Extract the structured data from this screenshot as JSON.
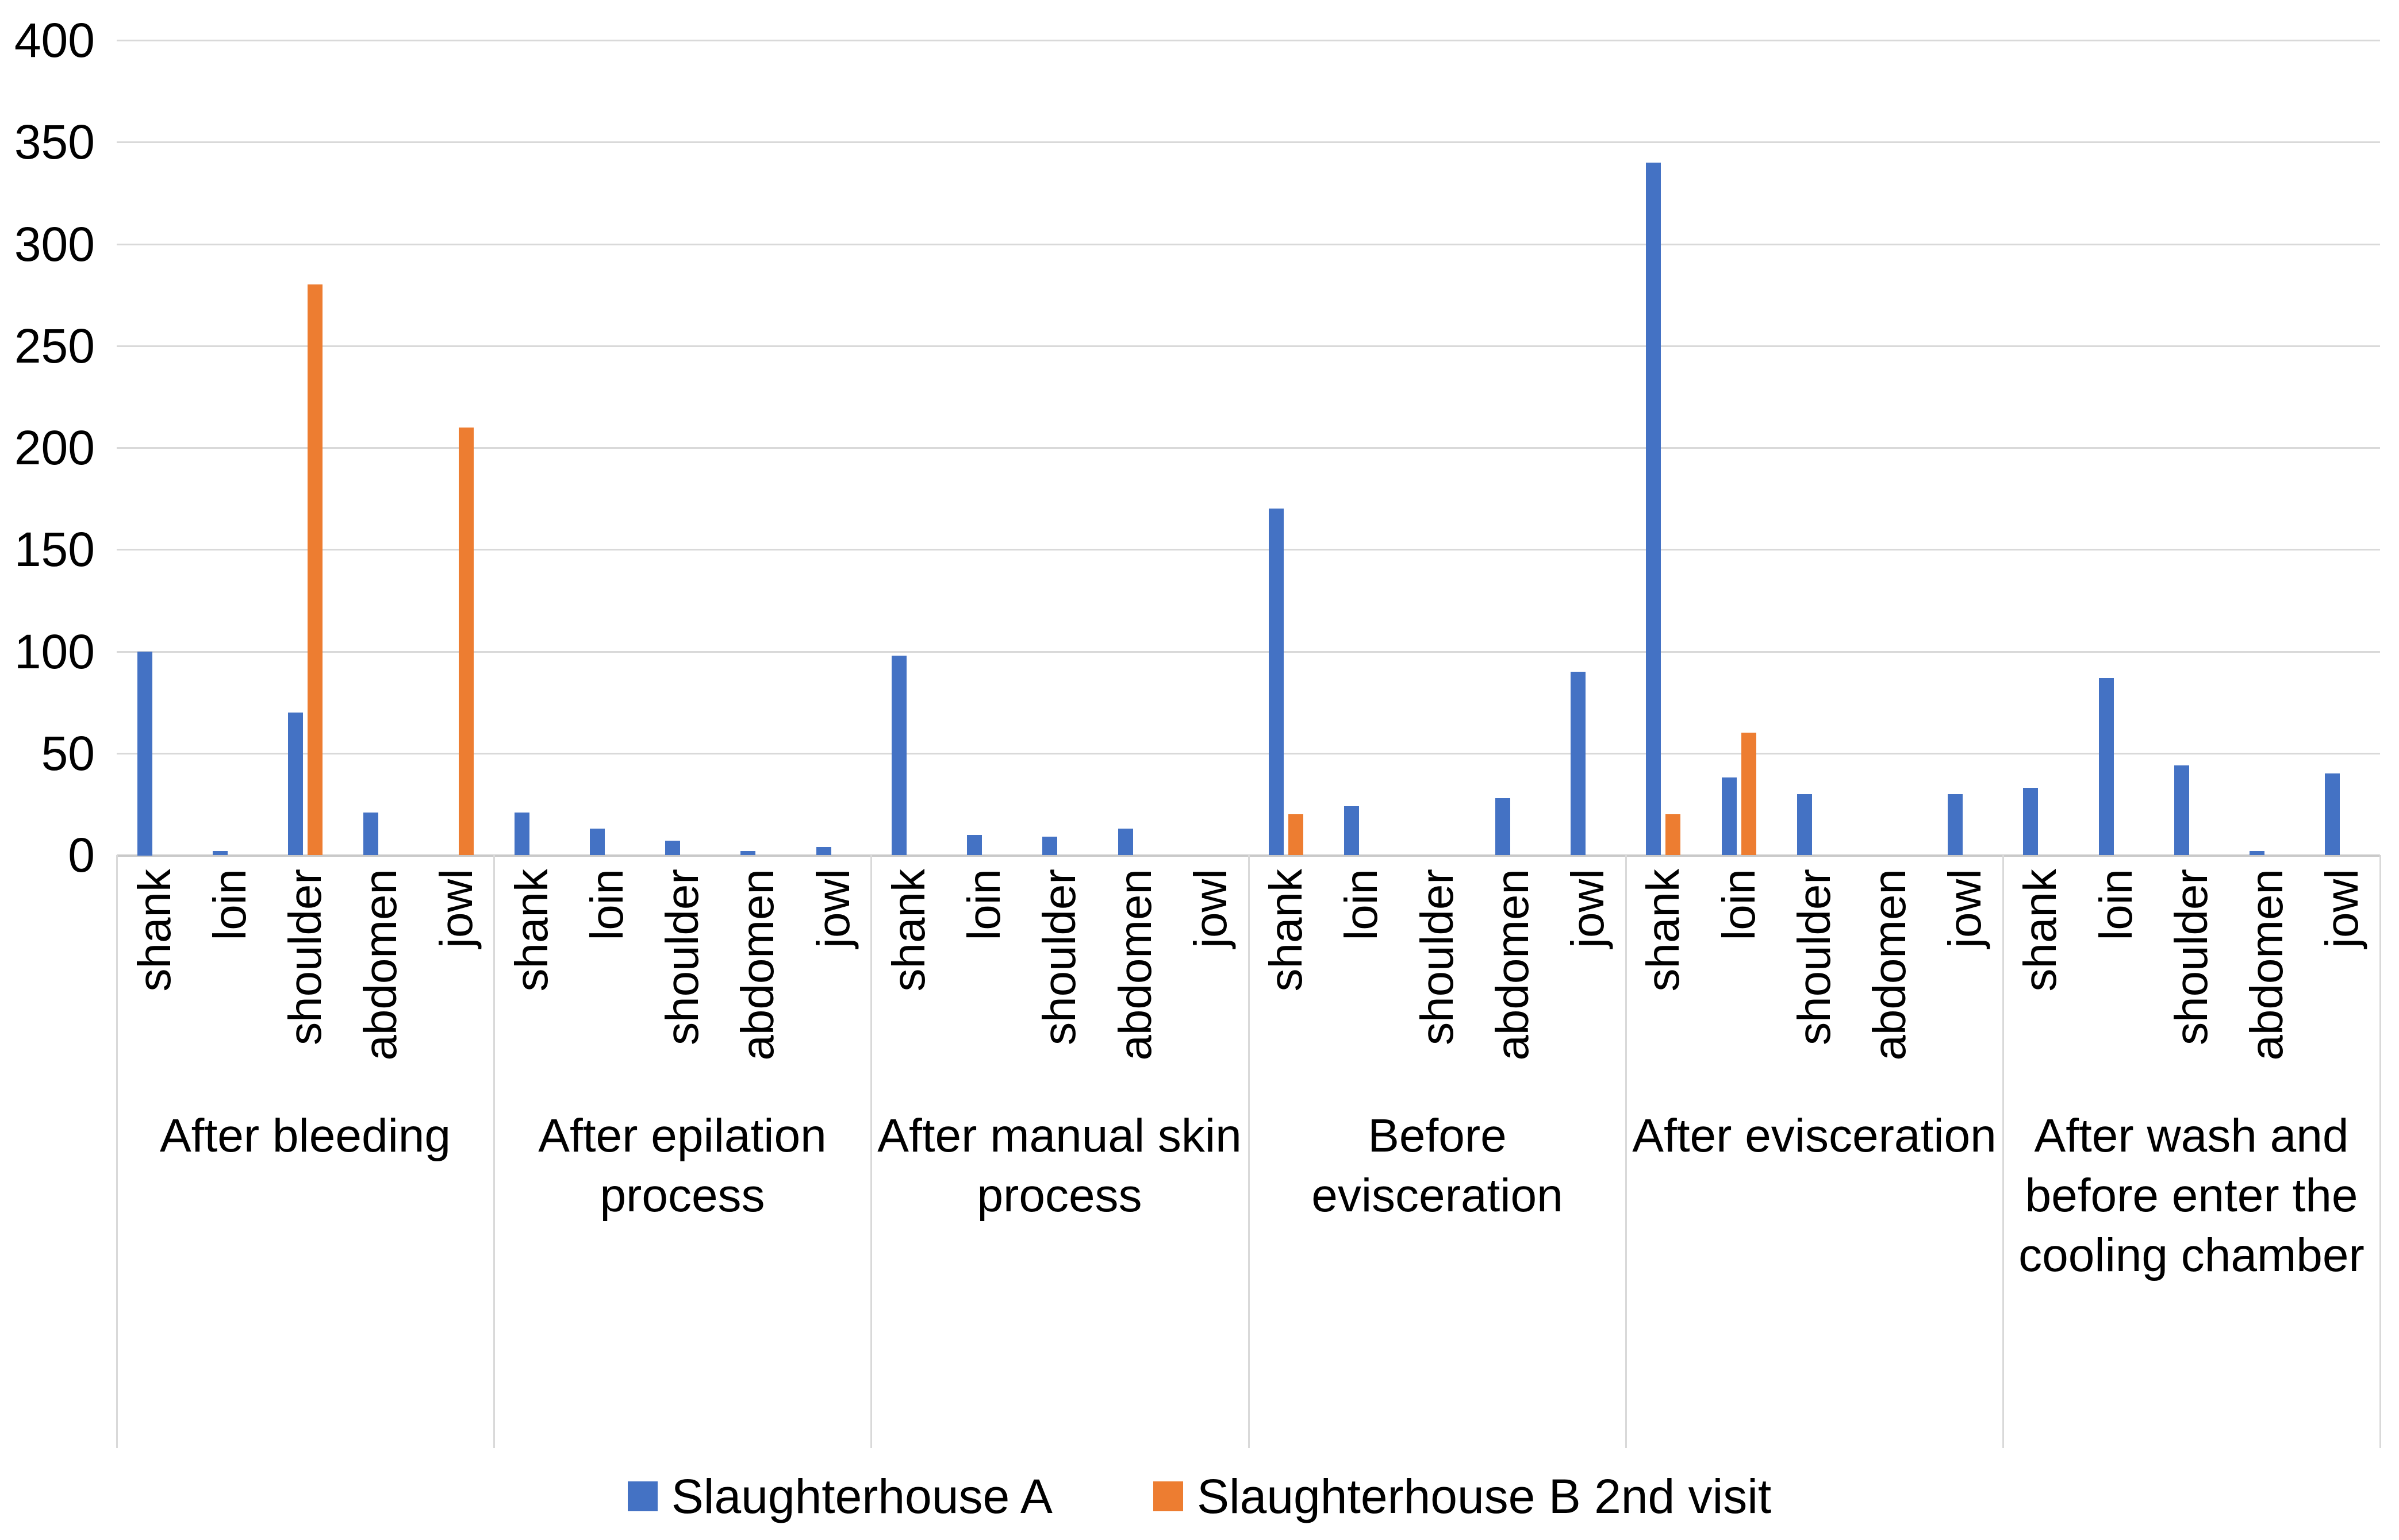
{
  "chart_data": {
    "type": "bar",
    "title": "",
    "xlabel": "",
    "ylabel": "",
    "ylim": [
      0,
      400
    ],
    "ytick_interval": 50,
    "yticks": [
      0,
      50,
      100,
      150,
      200,
      250,
      300,
      350,
      400
    ],
    "grid": true,
    "legend_position": "bottom",
    "background_color": "#ffffff",
    "gridline_color": "#d9d9d9",
    "categories": [
      "shank",
      "loin",
      "shoulder",
      "abdomen",
      "jowl"
    ],
    "groups": [
      {
        "label": "After bleeding"
      },
      {
        "label": "After epilation\nprocess"
      },
      {
        "label": "After manual  skin\nprocess"
      },
      {
        "label": "Before evisceration"
      },
      {
        "label": "After evisceration"
      },
      {
        "label": "After wash and\nbefore enter the\ncooling chamber"
      }
    ],
    "series": [
      {
        "name": "Slaughterhouse A",
        "color": "#4472c4",
        "values_by_group": [
          [
            100,
            2,
            70,
            21,
            0
          ],
          [
            21,
            13,
            7,
            2,
            4
          ],
          [
            98,
            10,
            9,
            13,
            0
          ],
          [
            170,
            24,
            0,
            28,
            90
          ],
          [
            340,
            38,
            30,
            0,
            30
          ],
          [
            33,
            87,
            44,
            2,
            40
          ]
        ]
      },
      {
        "name": "Slaughterhouse B 2nd visit",
        "color": "#ed7d31",
        "values_by_group": [
          [
            0,
            0,
            280,
            0,
            210
          ],
          [
            0,
            0,
            0,
            0,
            0
          ],
          [
            0,
            0,
            0,
            0,
            0
          ],
          [
            20,
            0,
            0,
            0,
            0
          ],
          [
            20,
            60,
            0,
            0,
            0
          ],
          [
            0,
            0,
            0,
            0,
            0
          ]
        ]
      }
    ]
  },
  "legend": {
    "items": [
      {
        "label": "Slaughterhouse A",
        "color": "#4472c4"
      },
      {
        "label": "Slaughterhouse B 2nd visit",
        "color": "#ed7d31"
      }
    ]
  }
}
